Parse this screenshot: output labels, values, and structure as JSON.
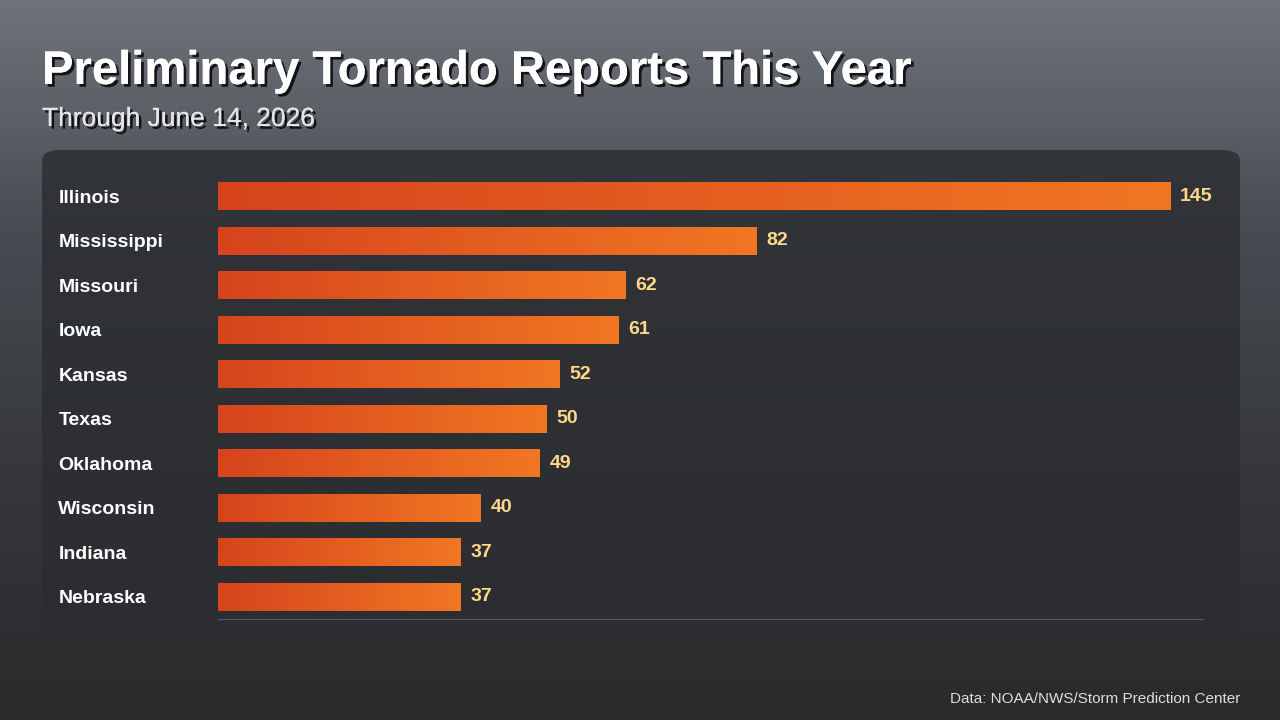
{
  "chart_data": {
    "type": "bar",
    "orientation": "horizontal",
    "title": "Preliminary Tornado Reports This Year",
    "subtitle": "Through June 14, 2026",
    "source": "Data: NOAA/NWS/Storm Prediction Center",
    "categories": [
      "Illinois",
      "Mississippi",
      "Missouri",
      "Iowa",
      "Kansas",
      "Texas",
      "Oklahoma",
      "Wisconsin",
      "Indiana",
      "Nebraska"
    ],
    "values": [
      145,
      82,
      62,
      61,
      52,
      50,
      49,
      40,
      37,
      37
    ],
    "color": "#e0531f",
    "xlim": [
      0,
      150
    ],
    "xticks": [],
    "grid": false,
    "data_labels": true,
    "tick_labels": "y"
  }
}
